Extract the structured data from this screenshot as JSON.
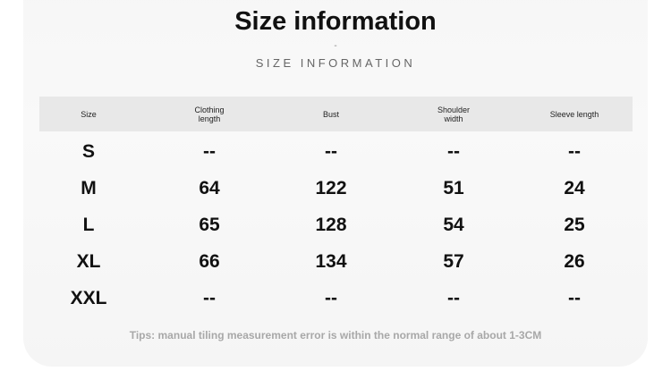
{
  "title": "Size information",
  "separator": "-",
  "subtitle": "SIZE INFORMATION",
  "table": {
    "headers": [
      "Size",
      "Clothing length",
      "Bust",
      "Shoulder width",
      "Sleeve length"
    ],
    "rows": [
      [
        "S",
        "--",
        "--",
        "--",
        "--"
      ],
      [
        "M",
        "64",
        "122",
        "51",
        "24"
      ],
      [
        "L",
        "65",
        "128",
        "54",
        "25"
      ],
      [
        "XL",
        "66",
        "134",
        "57",
        "26"
      ],
      [
        "XXL",
        "--",
        "--",
        "--",
        "--"
      ]
    ]
  },
  "tips": "Tips: manual tiling measurement error is within the normal range of about 1-3CM"
}
